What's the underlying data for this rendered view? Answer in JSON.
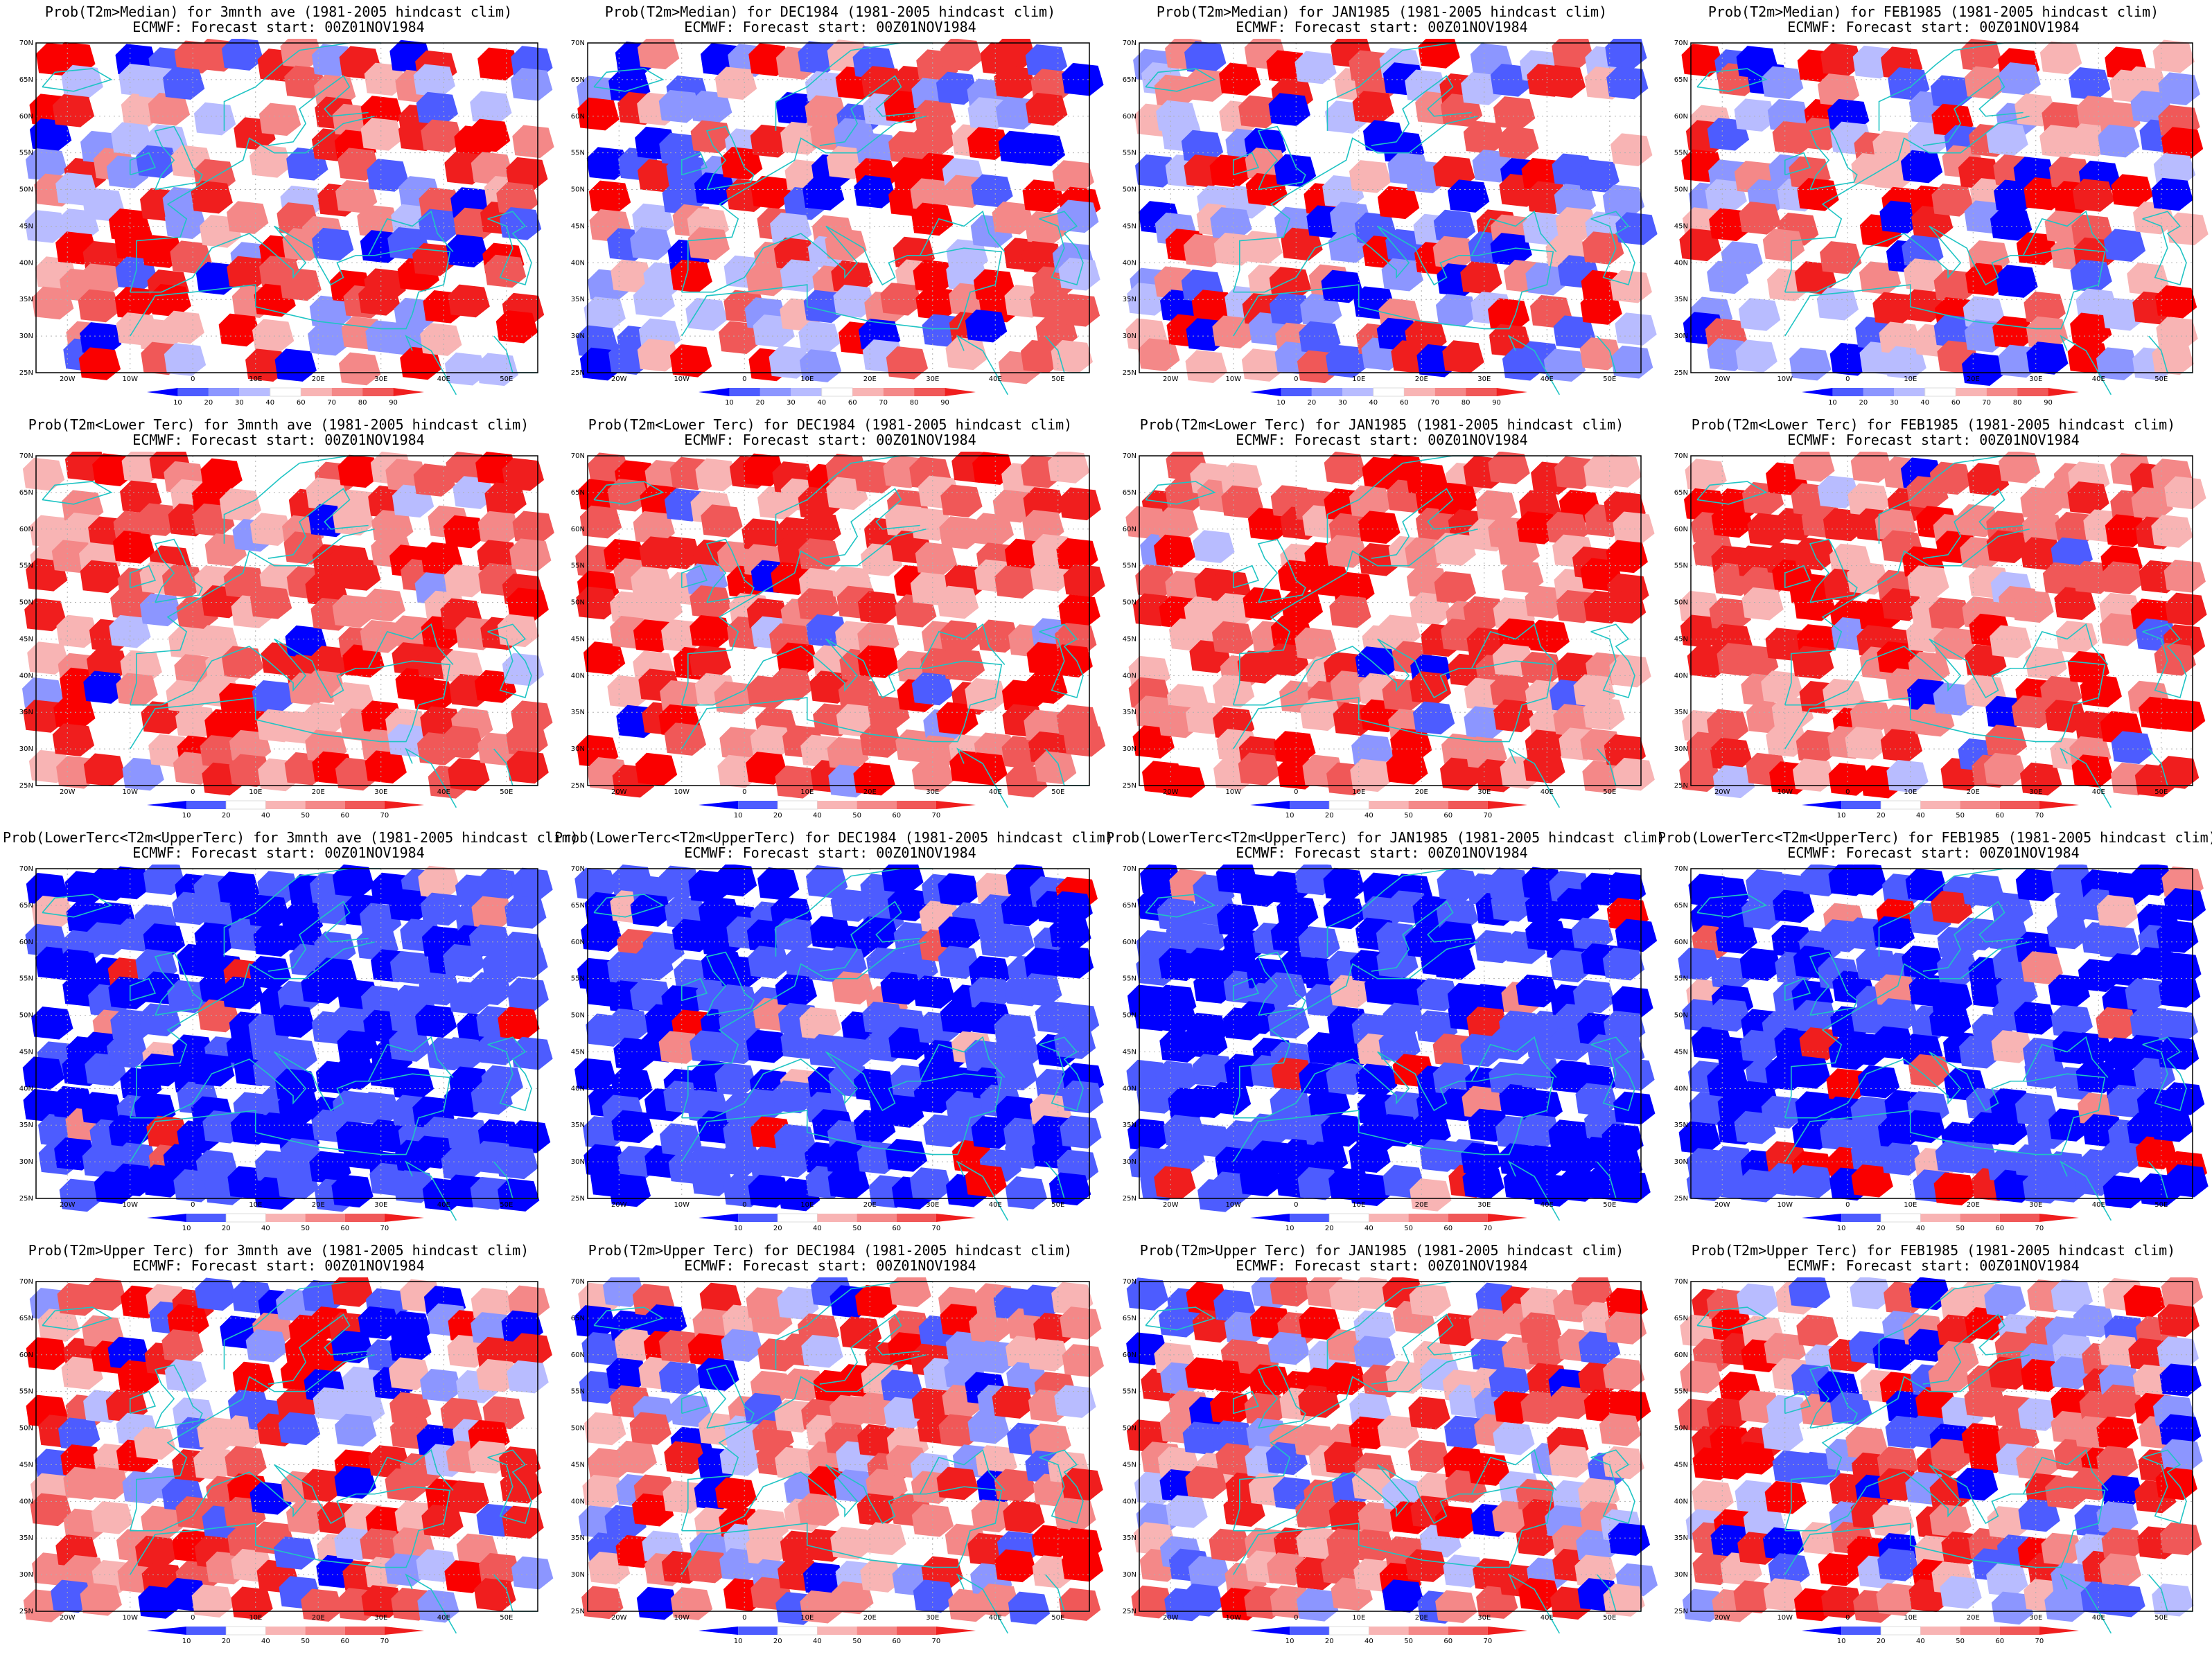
{
  "rows": [
    {
      "field": "Prob(T2m>Median)",
      "colorbar_labels": [
        "10",
        "20",
        "30",
        "40",
        "60",
        "70",
        "80",
        "90"
      ],
      "panels": [
        {
          "line1": "Prob(T2m>Median) for 3mnth ave (1981-2005 hindcast clim)",
          "line2": "ECMWF: Forecast start: 00Z01NOV1984"
        },
        {
          "line1": "Prob(T2m>Median) for DEC1984 (1981-2005 hindcast clim)",
          "line2": "ECMWF: Forecast start: 00Z01NOV1984"
        },
        {
          "line1": "Prob(T2m>Median) for JAN1985 (1981-2005 hindcast clim)",
          "line2": "ECMWF: Forecast start: 00Z01NOV1984"
        },
        {
          "line1": "Prob(T2m>Median) for FEB1985 (1981-2005 hindcast clim)",
          "line2": "ECMWF: Forecast start: 00Z01NOV1984"
        }
      ]
    },
    {
      "field": "Prob(T2m<Lower Terc)",
      "colorbar_labels": [
        "10",
        "20",
        "40",
        "50",
        "60",
        "70"
      ],
      "panels": [
        {
          "line1": "Prob(T2m<Lower Terc) for 3mnth ave (1981-2005 hindcast clim)",
          "line2": "ECMWF: Forecast start: 00Z01NOV1984"
        },
        {
          "line1": "Prob(T2m<Lower Terc) for DEC1984 (1981-2005 hindcast clim)",
          "line2": "ECMWF: Forecast start: 00Z01NOV1984"
        },
        {
          "line1": "Prob(T2m<Lower Terc) for JAN1985 (1981-2005 hindcast clim)",
          "line2": "ECMWF: Forecast start: 00Z01NOV1984"
        },
        {
          "line1": "Prob(T2m<Lower Terc) for FEB1985 (1981-2005 hindcast clim)",
          "line2": "ECMWF: Forecast start: 00Z01NOV1984"
        }
      ]
    },
    {
      "field": "Prob(LowerTerc<T2m<UpperTerc)",
      "colorbar_labels": [
        "10",
        "20",
        "40",
        "50",
        "60",
        "70"
      ],
      "panels": [
        {
          "line1": "Prob(LowerTerc<T2m<UpperTerc) for 3mnth ave (1981-2005 hindcast clim)",
          "line2": "ECMWF: Forecast start: 00Z01NOV1984"
        },
        {
          "line1": "Prob(LowerTerc<T2m<UpperTerc) for DEC1984 (1981-2005 hindcast clim)",
          "line2": "ECMWF: Forecast start: 00Z01NOV1984"
        },
        {
          "line1": "Prob(LowerTerc<T2m<UpperTerc) for JAN1985 (1981-2005 hindcast clim)",
          "line2": "ECMWF: Forecast start: 00Z01NOV1984"
        },
        {
          "line1": "Prob(LowerTerc<T2m<UpperTerc) for FEB1985 (1981-2005 hindcast clim)",
          "line2": "ECMWF: Forecast start: 00Z01NOV1984"
        }
      ]
    },
    {
      "field": "Prob(T2m>Upper Terc)",
      "colorbar_labels": [
        "10",
        "20",
        "40",
        "50",
        "60",
        "70"
      ],
      "panels": [
        {
          "line1": "Prob(T2m>Upper Terc) for 3mnth ave (1981-2005 hindcast clim)",
          "line2": "ECMWF: Forecast start: 00Z01NOV1984"
        },
        {
          "line1": "Prob(T2m>Upper Terc) for DEC1984 (1981-2005 hindcast clim)",
          "line2": "ECMWF: Forecast start: 00Z01NOV1984"
        },
        {
          "line1": "Prob(T2m>Upper Terc) for JAN1985 (1981-2005 hindcast clim)",
          "line2": "ECMWF: Forecast start: 00Z01NOV1984"
        },
        {
          "line1": "Prob(T2m>Upper Terc) for FEB1985 (1981-2005 hindcast clim)",
          "line2": "ECMWF: Forecast start: 00Z01NOV1984"
        }
      ]
    }
  ],
  "lat_labels": [
    "70N",
    "65N",
    "60N",
    "55N",
    "50N",
    "45N",
    "40N",
    "35N",
    "30N",
    "25N"
  ],
  "lon_labels": [
    "20W",
    "10W",
    "0",
    "10E",
    "20E",
    "30E",
    "40E",
    "50E"
  ],
  "colors": {
    "blue_scale": [
      "#0000ff",
      "#4d5cff",
      "#8c96ff",
      "#b8bcff"
    ],
    "red_scale": [
      "#f8b4b4",
      "#f48888",
      "#f05858",
      "#f01e1e",
      "#fa0000"
    ],
    "coastline": "#20c4c4",
    "gridline": "#b0b0b0"
  },
  "fields_style": [
    {
      "red": 0.55,
      "blue": 0.4
    },
    {
      "red": 1.0,
      "blue": 0.05
    },
    {
      "red": 0.1,
      "blue": 1.0
    },
    {
      "red": 0.75,
      "blue": 0.35
    }
  ]
}
